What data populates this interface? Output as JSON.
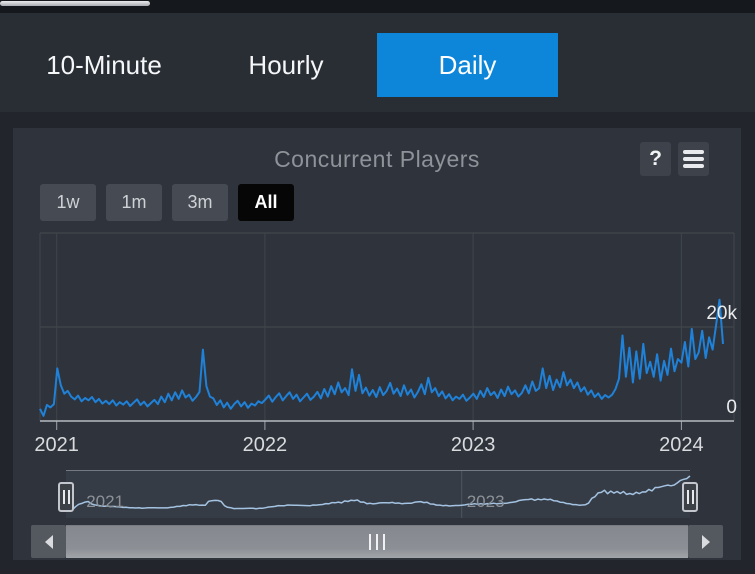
{
  "tabs": {
    "items": [
      {
        "label": "10-Minute",
        "active": false
      },
      {
        "label": "Hourly",
        "active": false
      },
      {
        "label": "Daily",
        "active": true
      }
    ],
    "active_color": "#0d85d8"
  },
  "chart_panel": {
    "title": "Concurrent Players",
    "help_label": "?",
    "range_buttons": [
      {
        "label": "1w",
        "active": false
      },
      {
        "label": "1m",
        "active": false
      },
      {
        "label": "3m",
        "active": false
      },
      {
        "label": "All",
        "active": true
      }
    ]
  },
  "chart_data": {
    "type": "line",
    "title": "Concurrent Players",
    "x_start": 2020.92,
    "x_end": 2024.2,
    "x_ticks": [
      {
        "label": "2021",
        "year": 2021
      },
      {
        "label": "2022",
        "year": 2022
      },
      {
        "label": "2023",
        "year": 2023
      },
      {
        "label": "2024",
        "year": 2024
      }
    ],
    "ylim": [
      0,
      40000
    ],
    "y_gridlines": [
      0,
      20000,
      40000
    ],
    "y_tick_labels": [
      {
        "value": 0,
        "label": "0"
      },
      {
        "value": 20000,
        "label": "20k"
      }
    ],
    "grid": true,
    "legend": "none",
    "series": [
      {
        "name": "Concurrent Players",
        "color": "#1f81d8",
        "values": [
          2600,
          1100,
          3400,
          2900,
          3600,
          11200,
          7600,
          5800,
          6400,
          5200,
          4600,
          5400,
          4200,
          4900,
          4400,
          5100,
          4000,
          4700,
          3700,
          4300,
          3600,
          4400,
          3300,
          4000,
          3500,
          4200,
          3200,
          3900,
          4600,
          3400,
          4100,
          3100,
          3800,
          4500,
          3600,
          5200,
          4000,
          5800,
          4400,
          6100,
          4700,
          6500,
          5000,
          5600,
          4300,
          5100,
          6200,
          15200,
          7400,
          5200,
          4800,
          3400,
          4400,
          2900,
          3900,
          2600,
          3600,
          4300,
          3100,
          4000,
          2800,
          3700,
          3300,
          4200,
          3800,
          4600,
          5400,
          4100,
          5100,
          5900,
          4400,
          5300,
          6100,
          4700,
          5600,
          4200,
          5000,
          5800,
          4500,
          5200,
          6200,
          4800,
          6800,
          5200,
          7400,
          5700,
          8200,
          6100,
          7000,
          5500,
          11000,
          6400,
          9800,
          5900,
          7100,
          5400,
          6600,
          5100,
          7200,
          5500,
          6400,
          8100,
          5800,
          6900,
          5300,
          7600,
          5600,
          6700,
          5000,
          6200,
          7800,
          5700,
          9200,
          6100,
          7000,
          5300,
          6300,
          4800,
          5700,
          4400,
          5200,
          4700,
          5600,
          4300,
          5000,
          5800,
          4700,
          6400,
          5100,
          7000,
          5500,
          6200,
          4900,
          6700,
          5300,
          7300,
          5700,
          6500,
          5200,
          6000,
          7600,
          5900,
          8400,
          6400,
          7000,
          11200,
          7000,
          9600,
          6600,
          8800,
          7200,
          10400,
          7600,
          8800,
          7000,
          8200,
          6300,
          7200,
          5600,
          6500,
          5100,
          5900,
          4700,
          5500,
          5000,
          5600,
          6800,
          9000,
          18200,
          9400,
          15600,
          8200,
          14800,
          9000,
          16400,
          10200,
          12600,
          9400,
          14200,
          8600,
          12800,
          9800,
          15400,
          10600,
          13200,
          12400,
          16800,
          11600,
          19600,
          13200,
          14600,
          19200,
          13400,
          17800,
          15200,
          20400,
          25800,
          16400
        ]
      }
    ],
    "navigator": {
      "color": "#a6c6e5",
      "smoothing": 5,
      "year_labels": [
        {
          "label": "2021",
          "year": 2021
        },
        {
          "label": "2023",
          "year": 2023
        }
      ],
      "gridline_years": [
        2023
      ]
    }
  }
}
